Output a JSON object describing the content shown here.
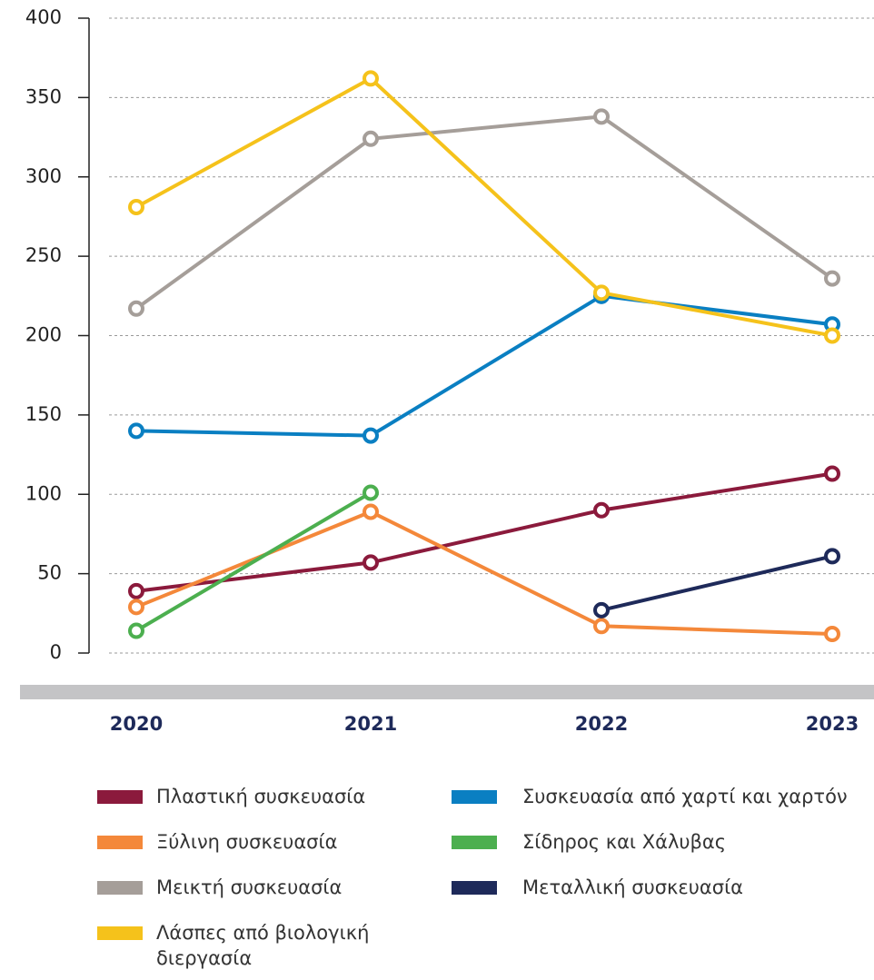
{
  "chart_data": {
    "type": "line",
    "categories": [
      "2020",
      "2021",
      "2022",
      "2023"
    ],
    "series": [
      {
        "name": "Πλαστική συσκευασία",
        "color": "#8b1a3c",
        "values": [
          39,
          57,
          90,
          113
        ]
      },
      {
        "name": "Συσκευασία από χαρτί και χαρτόν",
        "color": "#0a7fc2",
        "values": [
          140,
          137,
          225,
          207
        ]
      },
      {
        "name": "Ξύλινη συσκευασία",
        "color": "#f4883a",
        "values": [
          29,
          89,
          17,
          12
        ]
      },
      {
        "name": "Σίδηρος και Χάλυβας",
        "color": "#4caf4f",
        "values": [
          14,
          101,
          null,
          null
        ]
      },
      {
        "name": "Μεικτή συσκευασία",
        "color": "#a59e99",
        "values": [
          217,
          324,
          338,
          236
        ]
      },
      {
        "name": "Μεταλλική συσκευασία",
        "color": "#1e2a5a",
        "values": [
          null,
          null,
          27,
          61
        ]
      },
      {
        "name": "Λάσπες από βιολογική διεργασία",
        "color": "#f5c21b",
        "values": [
          281,
          362,
          227,
          200
        ]
      }
    ],
    "ylim": [
      0,
      400
    ],
    "yticks": [
      0,
      50,
      100,
      150,
      200,
      250,
      300,
      350,
      400
    ],
    "grid": true
  }
}
